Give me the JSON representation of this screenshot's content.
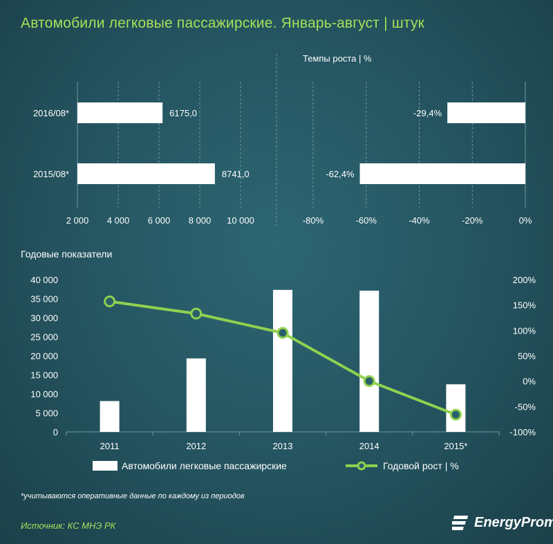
{
  "title": "Автомобили легковые пассажирские. Январь-август  | штук",
  "chart_data": [
    {
      "type": "bar",
      "orientation": "horizontal",
      "categories": [
        "2016/08*",
        "2015/08*"
      ],
      "values": [
        6175.0,
        8741.0
      ],
      "value_labels": [
        "6175,0",
        "8741,0"
      ],
      "xlim": [
        2000,
        10000
      ],
      "x_ticks": [
        2000,
        4000,
        6000,
        8000,
        10000
      ],
      "x_tick_labels": [
        "2 000",
        "4 000",
        "6 000",
        "8 000",
        "10 000"
      ],
      "grid": true
    },
    {
      "type": "bar",
      "orientation": "horizontal",
      "title": "Темпы роста  | %",
      "categories": [
        "2016/08*",
        "2015/08*"
      ],
      "values": [
        -29.4,
        -62.4
      ],
      "value_labels": [
        "-29,4%",
        "-62,4%"
      ],
      "xlim": [
        -80,
        0
      ],
      "x_ticks": [
        -80,
        -60,
        -40,
        -20,
        0
      ],
      "x_tick_labels": [
        "-80%",
        "-60%",
        "-40%",
        "-20%",
        "0%"
      ],
      "grid": true
    },
    {
      "type": "bar+line",
      "title": "Годовые показатели",
      "categories": [
        "2011",
        "2012",
        "2013",
        "2014",
        "2015*"
      ],
      "series": [
        {
          "name": "Автомобили легковые пассажирские",
          "type": "bar",
          "axis": "left",
          "values": [
            8100,
            19300,
            37300,
            37100,
            12500
          ]
        },
        {
          "name": "Годовой рост | %",
          "type": "line",
          "axis": "right",
          "values": [
            157,
            133,
            95,
            0,
            -66
          ]
        }
      ],
      "y_left": {
        "lim": [
          0,
          40000
        ],
        "ticks": [
          0,
          5000,
          10000,
          15000,
          20000,
          25000,
          30000,
          35000,
          40000
        ],
        "tick_labels": [
          "0",
          "5 000",
          "10 000",
          "15 000",
          "20 000",
          "25 000",
          "30 000",
          "35 000",
          "40 000"
        ]
      },
      "y_right": {
        "lim": [
          -100,
          200
        ],
        "ticks": [
          -100,
          -50,
          0,
          50,
          100,
          150,
          200
        ],
        "tick_labels": [
          "-100%",
          "-50%",
          "0%",
          "50%",
          "100%",
          "150%",
          "200%"
        ]
      },
      "legend_position": "bottom",
      "grid": false
    }
  ],
  "footnote": "*учитываются оперативные данные по каждому из периодов",
  "source": "Источник: КС МНЭ РК",
  "logo": {
    "text": "EnergyProm"
  },
  "colors": {
    "accent_green": "#8fd14f",
    "title_green": "#a6e05a",
    "bar": "#ffffff",
    "grid": "#6f9aa3"
  }
}
